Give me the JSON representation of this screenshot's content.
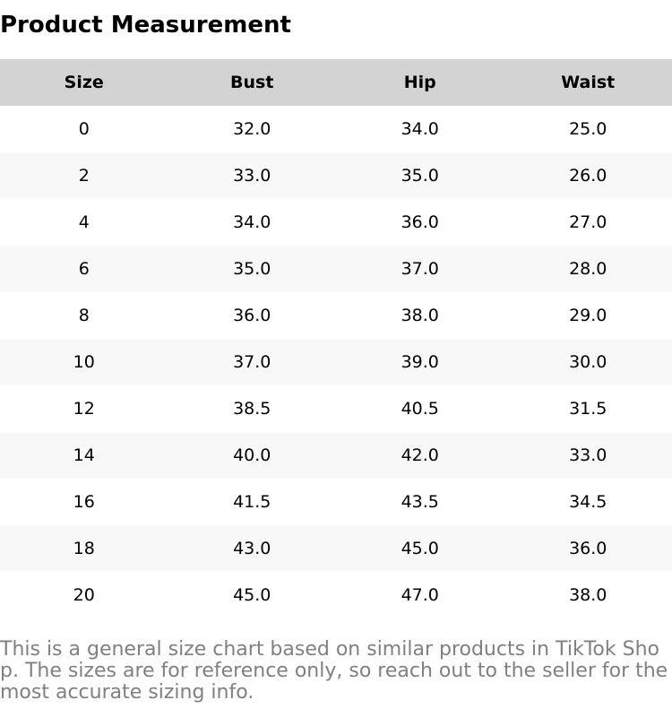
{
  "title": "Product Measurement",
  "table": {
    "headers": [
      "Size",
      "Bust",
      "Hip",
      "Waist"
    ],
    "rows": [
      [
        "0",
        "32.0",
        "34.0",
        "25.0"
      ],
      [
        "2",
        "33.0",
        "35.0",
        "26.0"
      ],
      [
        "4",
        "34.0",
        "36.0",
        "27.0"
      ],
      [
        "6",
        "35.0",
        "37.0",
        "28.0"
      ],
      [
        "8",
        "36.0",
        "38.0",
        "29.0"
      ],
      [
        "10",
        "37.0",
        "39.0",
        "30.0"
      ],
      [
        "12",
        "38.5",
        "40.5",
        "31.5"
      ],
      [
        "14",
        "40.0",
        "42.0",
        "33.0"
      ],
      [
        "16",
        "41.5",
        "43.5",
        "34.5"
      ],
      [
        "18",
        "43.0",
        "45.0",
        "36.0"
      ],
      [
        "20",
        "45.0",
        "47.0",
        "38.0"
      ]
    ]
  },
  "note": "This is a general size chart based on similar products in TikTok Shop. The sizes are for reference only, so reach out to the seller for the most accurate sizing info.",
  "colors": {
    "header_background": "#d3d3d3",
    "alternate_row_background": "#f8f8f8",
    "note_text": "#808080"
  }
}
